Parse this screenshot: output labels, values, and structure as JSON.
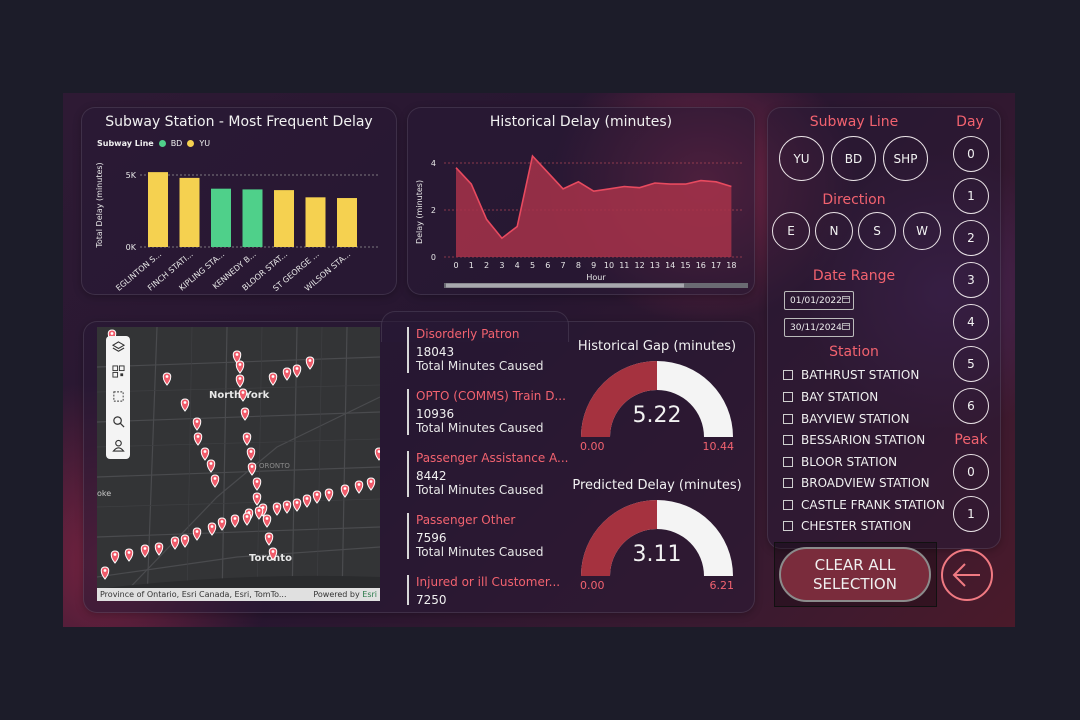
{
  "bar_chart": {
    "title": "Subway Station - Most Frequent Delay",
    "legend_title": "Subway Line",
    "legend": [
      {
        "name": "BD",
        "color": "#4fd08a"
      },
      {
        "name": "YU",
        "color": "#f5d150"
      }
    ],
    "ylabel": "Total Delay (minutes)",
    "yticks": [
      "5K",
      "0K"
    ]
  },
  "chart_data": [
    {
      "type": "bar",
      "title": "Subway Station - Most Frequent Delay",
      "ylabel": "Total Delay (minutes)",
      "categories": [
        "EGLINTON S...",
        "FINCH STATI...",
        "KIPLING STA...",
        "KENNEDY B...",
        "BLOOR STAT...",
        "ST GEORGE ...",
        "WILSON STA..."
      ],
      "values": [
        5200,
        4800,
        4050,
        4000,
        3950,
        3450,
        3400
      ],
      "lines": [
        "YU",
        "YU",
        "BD",
        "BD",
        "YU",
        "YU",
        "YU"
      ],
      "series_colors": {
        "BD": "#4fd08a",
        "YU": "#f5d150"
      },
      "ylim": [
        0,
        6000
      ],
      "yticks": [
        0,
        5000
      ],
      "legend": "top-left"
    },
    {
      "type": "area",
      "title": "Historical Delay (minutes)",
      "xlabel": "Hour",
      "ylabel": "Delay (minutes)",
      "x": [
        0,
        1,
        2,
        3,
        4,
        5,
        6,
        7,
        8,
        9,
        10,
        11,
        12,
        13,
        14,
        15,
        16,
        17,
        18
      ],
      "values": [
        3.8,
        3.1,
        1.6,
        0.8,
        1.3,
        4.3,
        3.6,
        2.9,
        3.2,
        2.8,
        2.9,
        3.0,
        2.95,
        3.15,
        3.1,
        3.1,
        3.25,
        3.2,
        3.0
      ],
      "ylim": [
        0,
        5
      ],
      "yticks": [
        0,
        2,
        4
      ]
    }
  ],
  "area_chart": {
    "title": "Historical Delay (minutes)",
    "xlabel": "Hour",
    "ylabel": "Delay (minutes)",
    "yticks": [
      "4",
      "2",
      "0"
    ],
    "xticks": [
      "0",
      "1",
      "2",
      "3",
      "4",
      "5",
      "6",
      "7",
      "8",
      "9",
      "10",
      "11",
      "12",
      "13",
      "14",
      "15",
      "16",
      "17",
      "18"
    ]
  },
  "map": {
    "label_north_york": "North York",
    "label_toronto": "Toronto",
    "label_toronto_faint": "ORONTO",
    "label_left": "oke",
    "attribution": "Province of Ontario, Esri Canada, Esri, TomTo...",
    "powered_by": "Powered by",
    "esri": "Esri",
    "tools": [
      "layers-icon",
      "qr-icon",
      "select-rect-icon",
      "search-icon",
      "user-icon"
    ]
  },
  "causes": [
    {
      "name": "Disorderly Patron",
      "value": "18043",
      "sub": "Total Minutes Caused"
    },
    {
      "name": "OPTO (COMMS) Train D...",
      "value": "10936",
      "sub": "Total Minutes Caused"
    },
    {
      "name": "Passenger Assistance A...",
      "value": "8442",
      "sub": "Total Minutes Caused"
    },
    {
      "name": "Passenger Other",
      "value": "7596",
      "sub": "Total Minutes Caused"
    },
    {
      "name": "Injured or ill Customer...",
      "value": "7250",
      "sub": ""
    }
  ],
  "gauges": [
    {
      "title": "Historical Gap (minutes)",
      "value": "5.22",
      "min": "0.00",
      "max": "10.44",
      "fraction": 0.5
    },
    {
      "title": "Predicted Delay (minutes)",
      "value": "3.11",
      "min": "0.00",
      "max": "6.21",
      "fraction": 0.5
    }
  ],
  "filters": {
    "subway_line_title": "Subway Line",
    "subway_lines": [
      "YU",
      "BD",
      "SHP"
    ],
    "direction_title": "Direction",
    "directions": [
      "E",
      "N",
      "S",
      "W"
    ],
    "date_range_title": "Date Range",
    "date_start": "01/01/2022",
    "date_end": "30/11/2024",
    "station_title": "Station",
    "stations": [
      "BATHRUST STATION",
      "BAY STATION",
      "BAYVIEW STATION",
      "BESSARION STATION",
      "BLOOR STATION",
      "BROADVIEW STATION",
      "CASTLE FRANK STATION",
      "CHESTER STATION"
    ],
    "day_title": "Day",
    "days": [
      "0",
      "1",
      "2",
      "3",
      "4",
      "5",
      "6"
    ],
    "peak_title": "Peak",
    "peaks": [
      "0",
      "1"
    ],
    "clear_label_1": "CLEAR ALL",
    "clear_label_2": "SELECTION"
  },
  "colors": {
    "accent": "#f2626f",
    "bd": "#4fd08a",
    "yu": "#f5d150",
    "gauge_fill": "#a5323f",
    "clear_button": "#7a2c3c"
  }
}
